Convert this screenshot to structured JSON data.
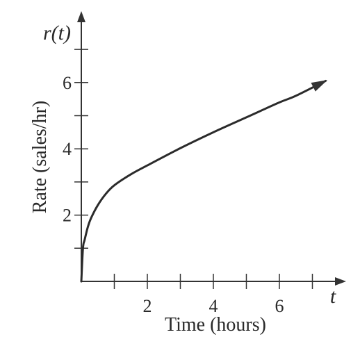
{
  "chart_data": {
    "type": "line",
    "title": "",
    "xlabel": "Time (hours)",
    "ylabel": "Rate (sales/hr)",
    "x_axis_variable": "t",
    "y_axis_variable": "r(t)",
    "xlim": [
      0,
      8
    ],
    "ylim": [
      0,
      8
    ],
    "x_ticks": [
      1,
      2,
      3,
      4,
      5,
      6,
      7
    ],
    "x_tick_labels": [
      "",
      "2",
      "",
      "4",
      "",
      "6",
      ""
    ],
    "y_ticks": [
      1,
      2,
      3,
      4,
      5,
      6,
      7
    ],
    "y_tick_labels": [
      "",
      "2",
      "",
      "4",
      "",
      "6",
      ""
    ],
    "grid": false,
    "axis_arrows": true,
    "curve_end_arrow": true,
    "line_color": "#2b2b2b",
    "series": [
      {
        "x": [
          0,
          0.05,
          0.1,
          0.2,
          0.3,
          0.5,
          0.75,
          1,
          1.5,
          2,
          3,
          4,
          5,
          6,
          6.5,
          7.4
        ],
        "values": [
          0,
          1.0,
          1.25,
          1.65,
          1.92,
          2.3,
          2.65,
          2.9,
          3.23,
          3.5,
          4.02,
          4.5,
          4.95,
          5.4,
          5.6,
          6.05
        ]
      }
    ]
  }
}
